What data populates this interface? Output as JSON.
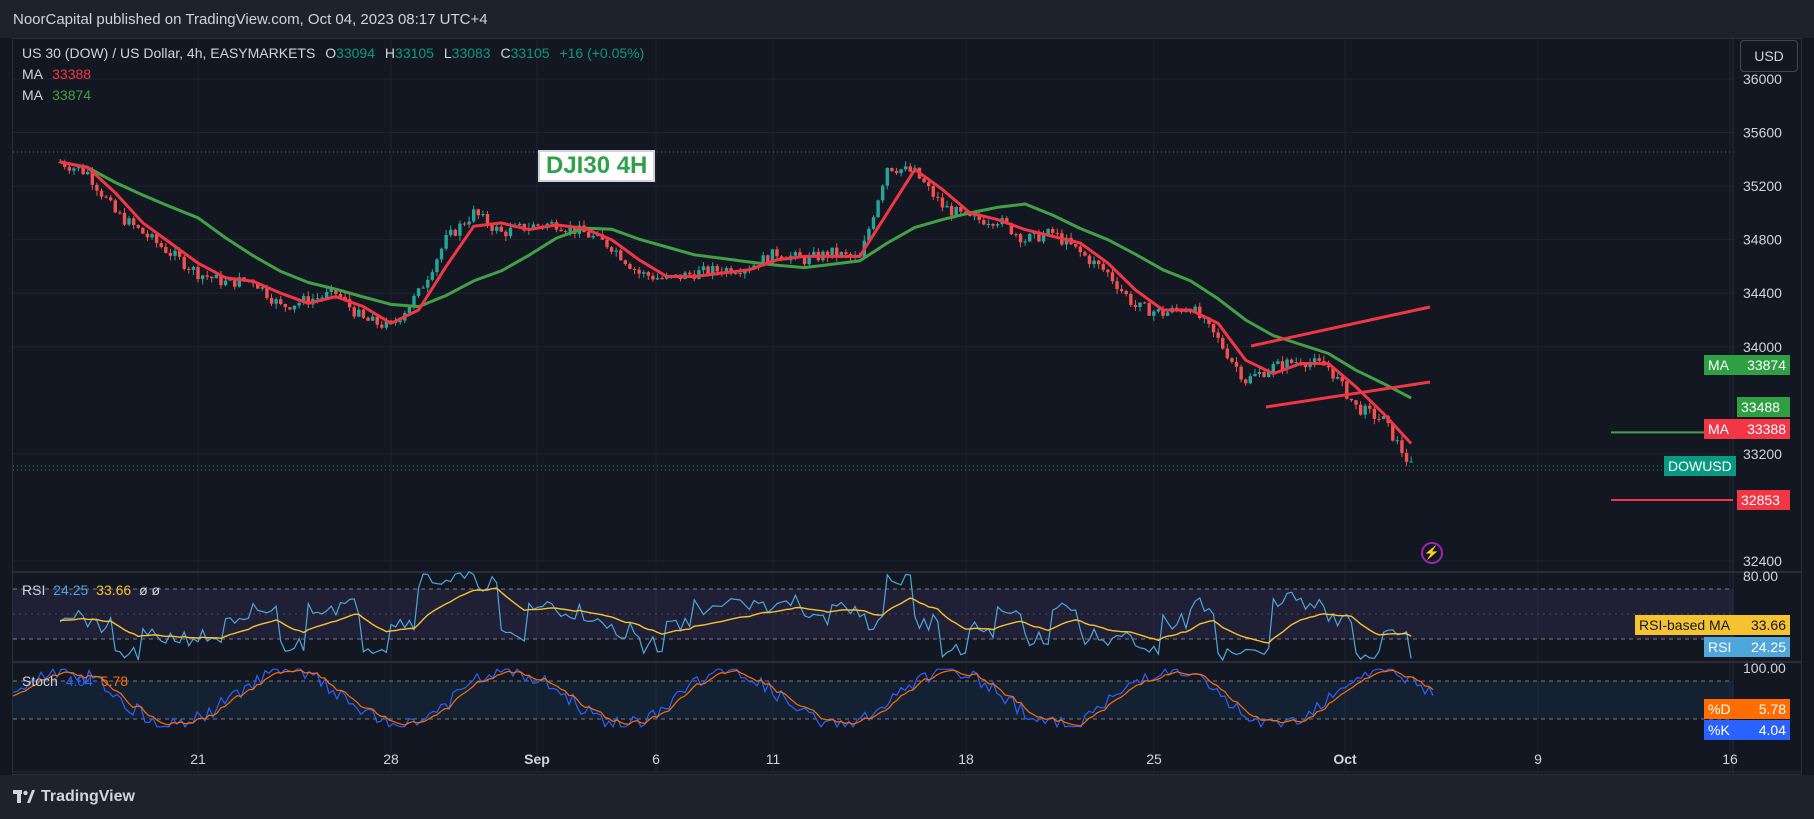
{
  "header": {
    "published_text": "NoorCapital published on TradingView.com, Oct 04, 2023 08:17 UTC+4"
  },
  "footer": {
    "brand": "TradingView"
  },
  "symbol_legend": {
    "title": "US 30 (DOW) / US Dollar, 4h, EASYMARKETS",
    "o_label": "O",
    "o_value": "33094",
    "h_label": "H",
    "h_value": "33105",
    "l_label": "L",
    "l_value": "33083",
    "c_label": "C",
    "c_value": "33105",
    "change": "+16 (+0.05%)",
    "ma1_label": "MA",
    "ma1_value": "33388",
    "ma2_label": "MA",
    "ma2_value": "33874"
  },
  "currency_button": "USD",
  "annotation_title": "DJI30 4H",
  "price_tags": {
    "ma2": {
      "label": "MA",
      "value": "33874"
    },
    "level_green": "33488",
    "ma1": {
      "label": "MA",
      "value": "33388"
    },
    "symbol": "DOWUSD",
    "level_red": "32853"
  },
  "rsi_legend": {
    "name": "RSI",
    "rsi": "24.25",
    "ma": "33.66",
    "extra": "ø ø"
  },
  "rsi_tags": {
    "ma_label": "RSI-based MA",
    "ma_value": "33.66",
    "rsi_label": "RSI",
    "rsi_value": "24.25"
  },
  "stoch_legend": {
    "name": "Stoch",
    "k": "4.04",
    "d": "5.78"
  },
  "stoch_tags": {
    "d_label": "%D",
    "d_value": "5.78",
    "k_label": "%K",
    "k_value": "4.04"
  },
  "colors": {
    "up": "#26a69a",
    "down": "#ef5350",
    "ma_fast": "#f23645",
    "ma_slow": "#43a047",
    "rsi": "#4fa6da",
    "rsi_ma": "#f5c330",
    "stoch_k": "#2962ff",
    "stoch_d": "#ff6d00"
  },
  "chart_data": {
    "type": "candlestick",
    "title": "DJI30 4H",
    "y_axis_ticks": [
      "36000",
      "35600",
      "35200",
      "34800",
      "34400",
      "34000",
      "33200",
      "32400"
    ],
    "ylim": [
      32300,
      36000
    ],
    "x_axis_ticks": [
      "21",
      "28",
      "Sep",
      "6",
      "11",
      "18",
      "25",
      "Oct",
      "9",
      "16"
    ],
    "close_path": [
      [
        "Aug 16",
        35380
      ],
      [
        "Aug 17",
        35300
      ],
      [
        "Aug 18",
        35000
      ],
      [
        "Aug 19",
        34850
      ],
      [
        "Aug 20",
        34700
      ],
      [
        "Aug 21",
        34550
      ],
      [
        "Aug 22",
        34480
      ],
      [
        "Aug 23",
        34500
      ],
      [
        "Aug 24",
        34300
      ],
      [
        "Aug 25",
        34350
      ],
      [
        "Aug 26",
        34400
      ],
      [
        "Aug 27",
        34200
      ],
      [
        "Aug 28",
        34150
      ],
      [
        "Aug 29",
        34400
      ],
      [
        "Aug 30",
        34800
      ],
      [
        "Aug 31",
        35000
      ],
      [
        "Sep 1",
        34850
      ],
      [
        "Sep 2",
        34900
      ],
      [
        "Sep 3",
        34920
      ],
      [
        "Sep 4",
        34850
      ],
      [
        "Sep 5",
        34750
      ],
      [
        "Sep 6",
        34550
      ],
      [
        "Sep 7",
        34500
      ],
      [
        "Sep 8",
        34550
      ],
      [
        "Sep 10",
        34600
      ],
      [
        "Sep 11",
        34700
      ],
      [
        "Sep 12",
        34650
      ],
      [
        "Sep 13",
        34700
      ],
      [
        "Sep 14",
        34650
      ],
      [
        "Sep 15",
        35350
      ],
      [
        "Sep 16",
        35300
      ],
      [
        "Sep 17",
        35050
      ],
      [
        "Sep 18",
        34950
      ],
      [
        "Sep 19",
        34950
      ],
      [
        "Sep 20",
        34800
      ],
      [
        "Sep 21",
        34850
      ],
      [
        "Sep 22",
        34700
      ],
      [
        "Sep 23",
        34550
      ],
      [
        "Sep 24",
        34300
      ],
      [
        "Sep 25",
        34250
      ],
      [
        "Sep 26",
        34300
      ],
      [
        "Sep 27",
        34050
      ],
      [
        "Sep 28",
        33750
      ],
      [
        "Sep 29",
        33850
      ],
      [
        "Sep 30",
        33900
      ],
      [
        "Oct 1",
        33850
      ],
      [
        "Oct 2",
        33550
      ],
      [
        "Oct 3",
        33450
      ],
      [
        "Oct 4",
        33105
      ]
    ],
    "moving_averages": [
      {
        "name": "MA",
        "value": 33388
      },
      {
        "name": "MA",
        "value": 33874
      }
    ],
    "levels": [
      33488,
      32853
    ],
    "last": {
      "open": 33094,
      "high": 33105,
      "low": 33083,
      "close": 33105
    },
    "indicators": {
      "rsi": {
        "value": 24.25,
        "ma": 33.66,
        "upper_label": "80.00"
      },
      "stoch": {
        "k": 4.04,
        "d": 5.78,
        "upper_label": "100.00"
      }
    }
  }
}
